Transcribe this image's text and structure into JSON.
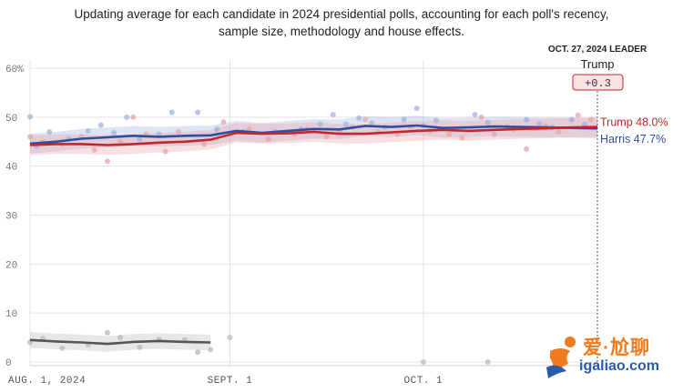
{
  "chart_data": {
    "type": "line",
    "title": "",
    "subtitle": [
      "Updating average for each candidate in 2024 presidential polls, accounting for each poll's recency,",
      "sample size, methodology and house effects."
    ],
    "xlabel": "",
    "ylabel": "",
    "ylim": [
      0,
      60
    ],
    "yticks": [
      0,
      10,
      20,
      30,
      40,
      50,
      60
    ],
    "ytick_labels": [
      "0",
      "10",
      "20",
      "30",
      "40",
      "50",
      "60%"
    ],
    "xlim": [
      0,
      88
    ],
    "xticks": [
      0,
      31,
      61
    ],
    "xtick_labels": [
      "AUG. 1, 2024",
      "SEPT. 1",
      "OCT. 1"
    ],
    "grid": true,
    "leader": {
      "date_label": "OCT. 27, 2024 LEADER",
      "name": "Trump",
      "margin": "+0.3",
      "x": 87
    },
    "series": [
      {
        "name": "Harris",
        "end_label": "Harris 47.7%",
        "color": "#2f4f9e",
        "band_color": "#9fb2de",
        "x": [
          0,
          4,
          8,
          12,
          16,
          20,
          24,
          28,
          32,
          36,
          40,
          44,
          48,
          52,
          56,
          60,
          64,
          68,
          72,
          76,
          80,
          84,
          88
        ],
        "values": [
          44.6,
          45.0,
          45.6,
          45.9,
          46.2,
          46.0,
          46.2,
          46.3,
          47.2,
          46.8,
          47.2,
          47.6,
          47.5,
          48.2,
          48.0,
          48.3,
          47.8,
          47.9,
          48.1,
          48.0,
          47.9,
          47.8,
          47.7
        ]
      },
      {
        "name": "Trump",
        "end_label": "Trump 48.0%",
        "color": "#c0282e",
        "band_color": "#eba3a6",
        "x": [
          0,
          4,
          8,
          12,
          16,
          20,
          24,
          28,
          32,
          36,
          40,
          44,
          48,
          52,
          56,
          60,
          64,
          68,
          72,
          76,
          80,
          84,
          88
        ],
        "values": [
          44.3,
          44.5,
          44.5,
          44.3,
          44.5,
          44.8,
          45.0,
          45.4,
          46.8,
          46.6,
          46.7,
          47.0,
          46.6,
          46.6,
          46.9,
          47.2,
          47.4,
          47.2,
          47.4,
          47.6,
          47.7,
          47.9,
          48.0
        ]
      },
      {
        "name": "",
        "color": "#555555",
        "band_color": "#bbbbbb",
        "x": [
          0,
          4,
          8,
          12,
          16,
          20,
          24,
          28
        ],
        "values": [
          4.5,
          4.2,
          4.0,
          3.7,
          4.1,
          4.3,
          4.1,
          4.0
        ]
      }
    ],
    "poll_points": {
      "Harris": [
        [
          0,
          50.1
        ],
        [
          1,
          44.0
        ],
        [
          3,
          47.0
        ],
        [
          6,
          45.5
        ],
        [
          9,
          47.2
        ],
        [
          11,
          48.4
        ],
        [
          13,
          46.8
        ],
        [
          15,
          50.0
        ],
        [
          17,
          45.5
        ],
        [
          20,
          46.5
        ],
        [
          22,
          51.0
        ],
        [
          26,
          51.0
        ],
        [
          29,
          47.5
        ],
        [
          33,
          47.0
        ],
        [
          38,
          47.0
        ],
        [
          42,
          47.5
        ],
        [
          45,
          48.6
        ],
        [
          47,
          50.5
        ],
        [
          49,
          48.5
        ],
        [
          51,
          49.8
        ],
        [
          53,
          48.8
        ],
        [
          55,
          47.9
        ],
        [
          58,
          49.5
        ],
        [
          60,
          51.8
        ],
        [
          61,
          48.3
        ],
        [
          63,
          49.3
        ],
        [
          66,
          47.5
        ],
        [
          69,
          50.5
        ],
        [
          71,
          48.9
        ],
        [
          74,
          48.0
        ],
        [
          77,
          49.5
        ],
        [
          79,
          48.7
        ],
        [
          81,
          47.9
        ],
        [
          84,
          49.5
        ],
        [
          86,
          48.5
        ]
      ],
      "Trump": [
        [
          0,
          46.0
        ],
        [
          2,
          45.0
        ],
        [
          5,
          44.5
        ],
        [
          8,
          46.0
        ],
        [
          10,
          43.3
        ],
        [
          12,
          41.0
        ],
        [
          14,
          45.0
        ],
        [
          16,
          50.0
        ],
        [
          18,
          46.5
        ],
        [
          21,
          43.0
        ],
        [
          23,
          47.0
        ],
        [
          27,
          44.5
        ],
        [
          30,
          49.0
        ],
        [
          34,
          47.5
        ],
        [
          37,
          45.5
        ],
        [
          41,
          46.5
        ],
        [
          43,
          47.5
        ],
        [
          46,
          46.0
        ],
        [
          48,
          47.0
        ],
        [
          50,
          48.0
        ],
        [
          52,
          49.5
        ],
        [
          54,
          47.0
        ],
        [
          57,
          46.5
        ],
        [
          59,
          48.0
        ],
        [
          62,
          47.2
        ],
        [
          65,
          46.5
        ],
        [
          67,
          45.8
        ],
        [
          70,
          50.0
        ],
        [
          72,
          46.5
        ],
        [
          75,
          47.5
        ],
        [
          77,
          43.5
        ],
        [
          80,
          48.2
        ],
        [
          82,
          47.0
        ],
        [
          85,
          50.4
        ],
        [
          87,
          49.5
        ]
      ],
      "Other": [
        [
          0,
          4.0
        ],
        [
          2,
          4.8
        ],
        [
          5,
          2.8
        ],
        [
          9,
          3.5
        ],
        [
          12,
          6.0
        ],
        [
          14,
          5.0
        ],
        [
          17,
          3.0
        ],
        [
          20,
          4.6
        ],
        [
          24,
          4.5
        ],
        [
          26,
          2.0
        ],
        [
          28,
          2.5
        ],
        [
          31,
          5.0
        ],
        [
          61,
          0.0
        ],
        [
          71,
          0.0
        ]
      ]
    }
  },
  "watermark": {
    "cn_text": "爱·尬聊",
    "url_text": "igaliao.com"
  }
}
